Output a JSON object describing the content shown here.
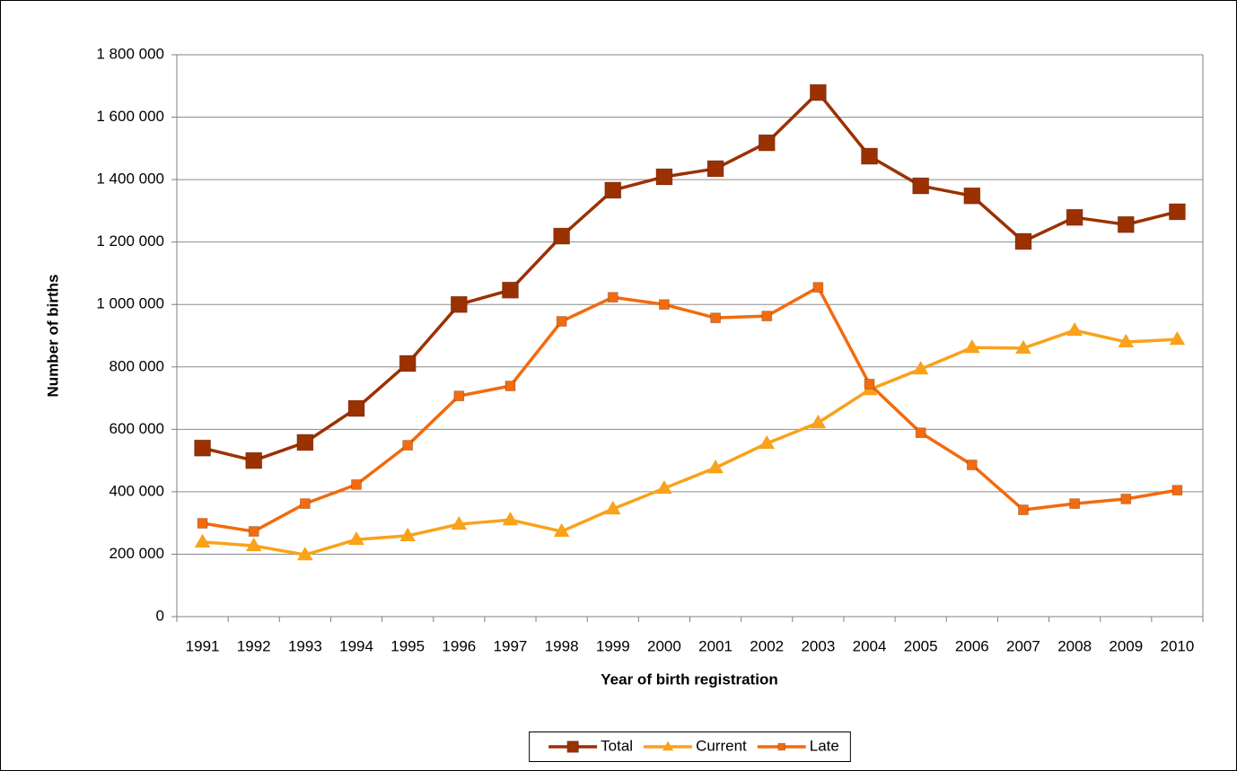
{
  "chart_data": {
    "type": "line",
    "x_label": "Year of birth registration",
    "y_label": "Number of births",
    "categories": [
      "1991",
      "1992",
      "1993",
      "1994",
      "1995",
      "1996",
      "1997",
      "1998",
      "1999",
      "2000",
      "2001",
      "2002",
      "2003",
      "2004",
      "2005",
      "2006",
      "2007",
      "2008",
      "2009",
      "2010"
    ],
    "series": [
      {
        "name": "Total",
        "color": "#9b3100",
        "marker": "square",
        "values": [
          540000,
          500000,
          558000,
          667000,
          811000,
          1000000,
          1046000,
          1219000,
          1366000,
          1409000,
          1435000,
          1518000,
          1679000,
          1475000,
          1380000,
          1348000,
          1202000,
          1279000,
          1256000,
          1297000
        ]
      },
      {
        "name": "Current",
        "color": "#f9a21a",
        "marker": "triangle",
        "values": [
          239000,
          227000,
          198000,
          247000,
          259000,
          296000,
          310000,
          273000,
          345000,
          411000,
          477000,
          555000,
          621000,
          727000,
          793000,
          862000,
          860000,
          917000,
          880000,
          888000
        ]
      },
      {
        "name": "Late",
        "color": "#f26b0f",
        "marker": "square",
        "values": [
          299000,
          273000,
          362000,
          423000,
          549000,
          707000,
          739000,
          946000,
          1023000,
          1000000,
          957000,
          963000,
          1055000,
          745000,
          589000,
          486000,
          342000,
          362000,
          377000,
          405000
        ]
      }
    ],
    "ylim": [
      0,
      1800000
    ],
    "yticks": [
      0,
      {
        "value": 200000,
        "label": "200 000"
      },
      {
        "value": 400000,
        "label": "400 000"
      },
      {
        "value": 600000,
        "label": "600 000"
      },
      {
        "value": 800000,
        "label": "800 000"
      },
      {
        "value": 1000000,
        "label": "1 000 000"
      },
      {
        "value": 1200000,
        "label": "1 200 000"
      },
      {
        "value": 1400000,
        "label": "1 400 000"
      },
      {
        "value": 1600000,
        "label": "1 600 000"
      },
      {
        "value": 1800000,
        "label": "1 800 000"
      }
    ],
    "grid": true,
    "legend": "bottom"
  }
}
